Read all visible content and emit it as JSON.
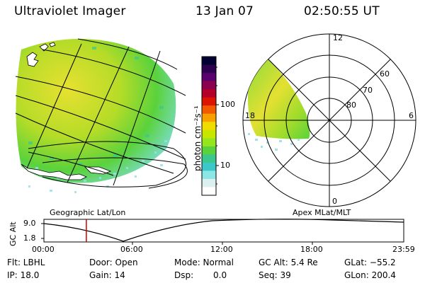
{
  "header": {
    "instrument": "Ultraviolet Imager",
    "date": "13 Jan 07",
    "time": "02:50:55 UT"
  },
  "colorbar": {
    "unit": "photon cm⁻²s⁻¹",
    "ticks": [
      "100",
      "10"
    ],
    "colors": [
      "#000033",
      "#2b0050",
      "#5a006e",
      "#8c0050",
      "#b40028",
      "#dc1400",
      "#f25a00",
      "#f7a000",
      "#f0dc00",
      "#c8e600",
      "#96e61e",
      "#5ad23c",
      "#3cc88c",
      "#3cc8c8",
      "#8ce6e6",
      "#dcf0f0",
      "#ffffff"
    ]
  },
  "geo_panel": {
    "label": "Geographic Lat/Lon"
  },
  "polar_panel": {
    "label": "Apex MLat/MLT",
    "mlt_labels": [
      "12",
      "18",
      "6",
      "0"
    ],
    "lat_labels": [
      "60",
      "70",
      "80"
    ]
  },
  "timeline": {
    "axis_label": "GC Alt",
    "y_ticks": [
      "9.0",
      "1.8"
    ],
    "x_ticks": [
      "00:00",
      "06:00",
      "12:00",
      "18:00",
      "23:59"
    ],
    "current_time_fraction": 0.118
  },
  "info": {
    "filter": "Flt: LBHL",
    "door": "Door: Open",
    "mode": "Mode: Normal",
    "gc_alt": "GC Alt: 5.4 Re",
    "glat": "GLat: −55.2",
    "ip": "IP: 18.0",
    "gain": "Gain: 14",
    "dsp_label": "Dsp:",
    "dsp_value": "0.0",
    "seq": "Seq: 39",
    "glon": "GLon: 200.4"
  }
}
